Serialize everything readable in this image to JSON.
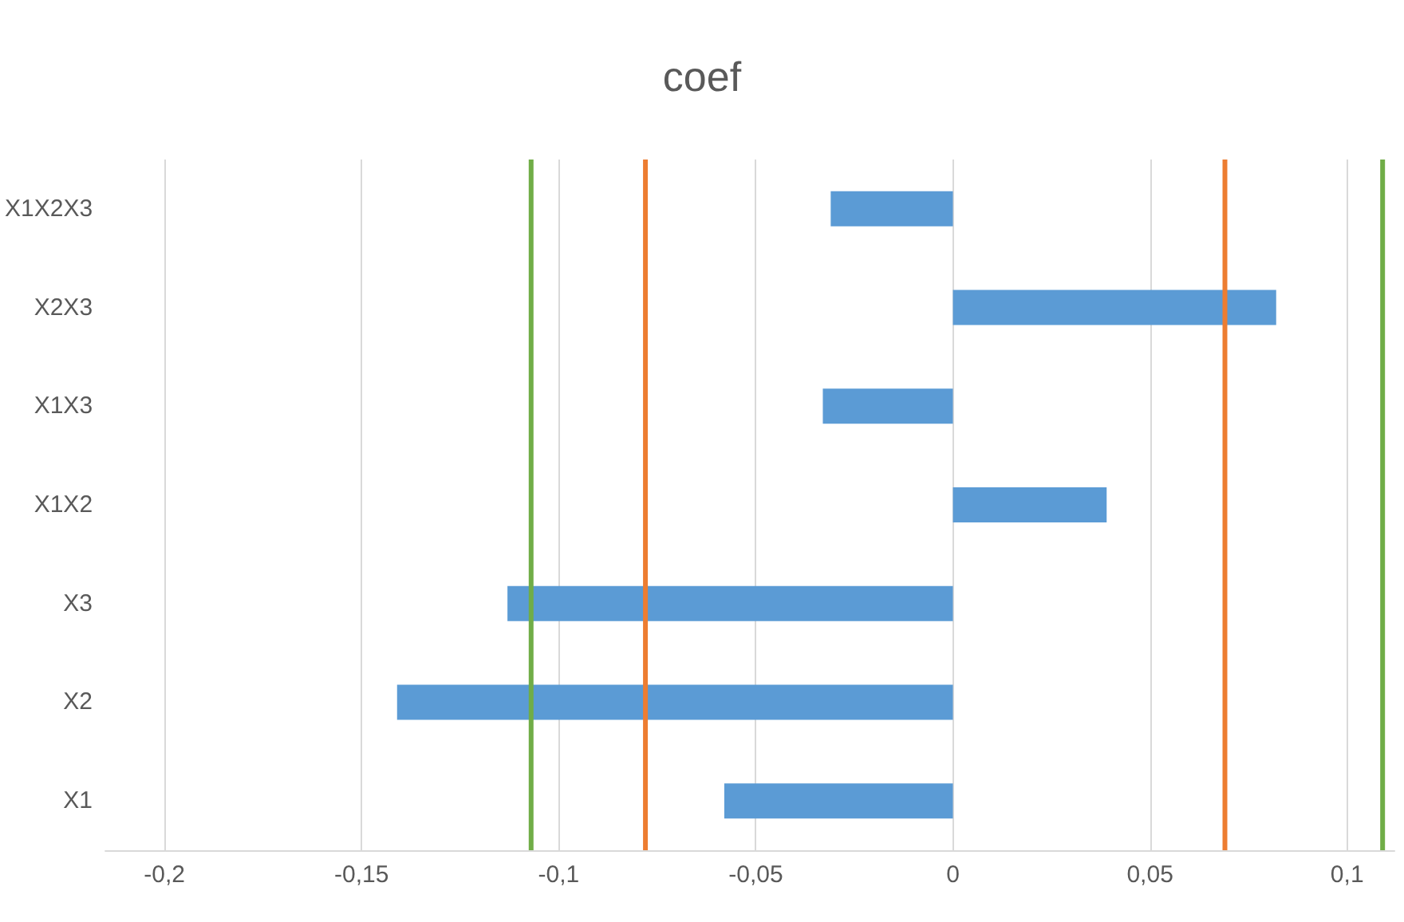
{
  "chart_data": {
    "type": "bar",
    "title": "coef",
    "orientation": "horizontal",
    "categories": [
      "X1X2X3",
      "X2X3",
      "X1X3",
      "X1X2",
      "X3",
      "X2",
      "X1"
    ],
    "values": [
      -0.031,
      0.082,
      -0.033,
      0.039,
      -0.113,
      -0.141,
      -0.058
    ],
    "color": "#5b9bd5",
    "xlim": [
      -0.215,
      0.112
    ],
    "xticks": [
      {
        "value": -0.2,
        "label": "-0,2"
      },
      {
        "value": -0.15,
        "label": "-0,15"
      },
      {
        "value": -0.1,
        "label": "-0,1"
      },
      {
        "value": -0.05,
        "label": "-0,05"
      },
      {
        "value": 0,
        "label": "0"
      },
      {
        "value": 0.05,
        "label": "0,05"
      },
      {
        "value": 0.1,
        "label": "0,1"
      }
    ],
    "grid": "x",
    "ref_lines": [
      {
        "axis": "x",
        "value": -0.107,
        "color": "#70ad47"
      },
      {
        "axis": "x",
        "value": -0.078,
        "color": "#ed7d31"
      },
      {
        "axis": "x",
        "value": 0.069,
        "color": "#ed7d31"
      },
      {
        "axis": "x",
        "value": 0.109,
        "color": "#70ad47"
      }
    ]
  }
}
